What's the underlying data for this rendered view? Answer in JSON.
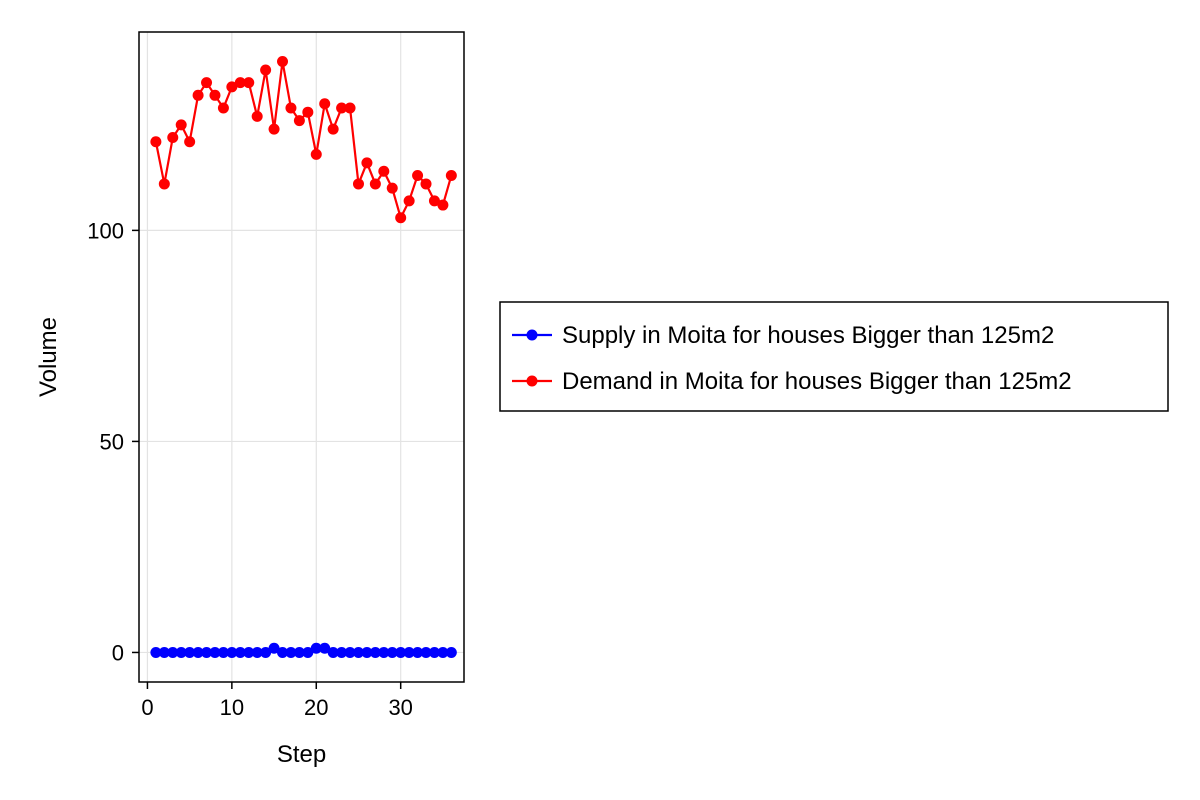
{
  "chart_data": {
    "type": "line",
    "title": "",
    "xlabel": "Step",
    "ylabel": "Volume",
    "xlim": [
      -1,
      37.5
    ],
    "ylim": [
      -7,
      147
    ],
    "xticks": [
      0,
      10,
      20,
      30
    ],
    "yticks": [
      0,
      50,
      100
    ],
    "grid": true,
    "legend_position": "right",
    "x": [
      1,
      2,
      3,
      4,
      5,
      6,
      7,
      8,
      9,
      10,
      11,
      12,
      13,
      14,
      15,
      16,
      17,
      18,
      19,
      20,
      21,
      22,
      23,
      24,
      25,
      26,
      27,
      28,
      29,
      30,
      31,
      32,
      33,
      34,
      35,
      36
    ],
    "series": [
      {
        "name": "Supply in Moita for houses Bigger than 125m2",
        "color": "#0000ff",
        "values": [
          0,
          0,
          0,
          0,
          0,
          0,
          0,
          0,
          0,
          0,
          0,
          0,
          0,
          0,
          1,
          0,
          0,
          0,
          0,
          1,
          1,
          0,
          0,
          0,
          0,
          0,
          0,
          0,
          0,
          0,
          0,
          0,
          0,
          0,
          0,
          0
        ]
      },
      {
        "name": "Demand in Moita for houses Bigger than 125m2",
        "color": "#ff0000",
        "values": [
          121,
          111,
          122,
          125,
          121,
          132,
          135,
          132,
          129,
          134,
          135,
          135,
          127,
          138,
          124,
          140,
          129,
          126,
          128,
          118,
          130,
          124,
          129,
          129,
          111,
          116,
          111,
          114,
          110,
          103,
          107,
          113,
          111,
          107,
          106,
          113
        ]
      }
    ]
  }
}
